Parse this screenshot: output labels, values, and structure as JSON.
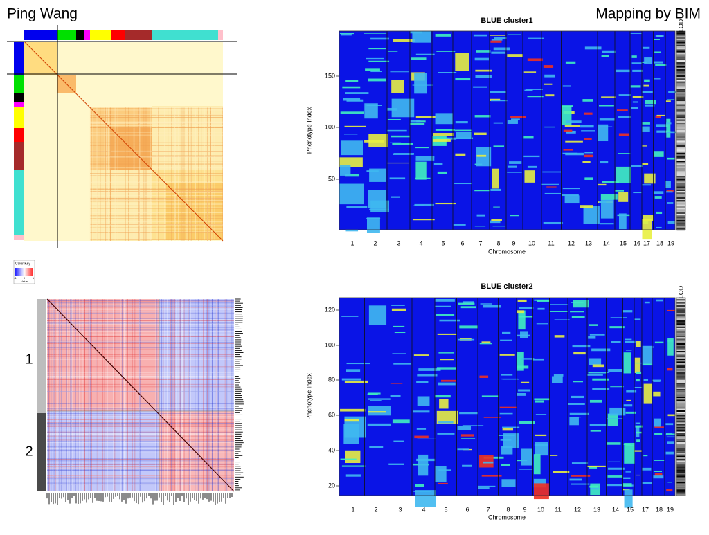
{
  "header": {
    "left": "Ping Wang",
    "right": "Mapping by BIM"
  },
  "color_key": {
    "title": "Color Key",
    "ticks": [
      "-1",
      "0",
      "1"
    ],
    "label": "Value"
  },
  "cluster_labels": [
    "1",
    "2"
  ],
  "panels": [
    {
      "title": "BLUE cluster1",
      "y_label": "Phenotype Index",
      "x_label": "Chromosome",
      "lod_label": "LOD",
      "yticks": [
        50,
        100,
        150
      ],
      "chromosomes": [
        "1",
        "2",
        "3",
        "4",
        "5",
        "6",
        "7",
        "8",
        "9",
        "10",
        "11",
        "12",
        "13",
        "14",
        "15",
        "16",
        "17",
        "18",
        "19"
      ]
    },
    {
      "title": "BLUE cluster2",
      "y_label": "Phenotype Index",
      "x_label": "Chromosome",
      "lod_label": "LOD",
      "yticks": [
        20,
        40,
        60,
        80,
        100,
        120
      ],
      "chromosomes": [
        "1",
        "2",
        "3",
        "4",
        "5",
        "6",
        "7",
        "8",
        "9",
        "10",
        "11",
        "12",
        "13",
        "14",
        "15",
        null,
        "17",
        "18",
        "19"
      ]
    }
  ]
}
